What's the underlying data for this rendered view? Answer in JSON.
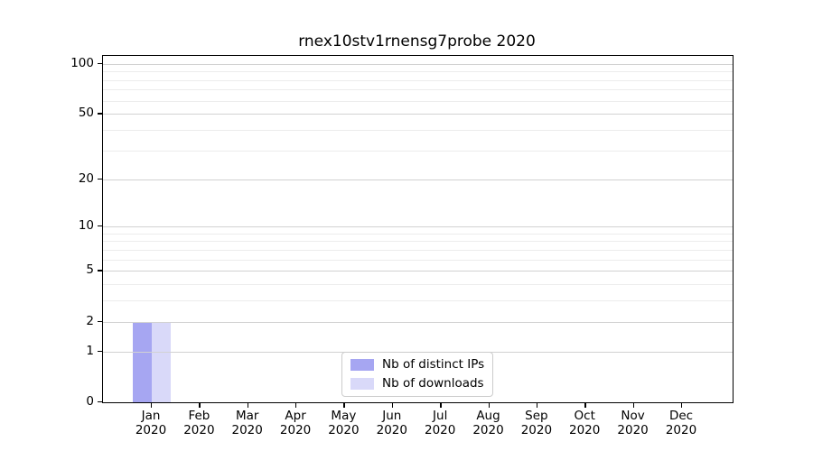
{
  "title": "rnex10stv1rnensg7probe 2020",
  "colors": {
    "distinct_ips_bar": "#a6a6f2",
    "downloads_bar": "#d9d9f9",
    "grid_major": "#d2d2d2",
    "grid_minor": "#ececec",
    "spine": "#000000",
    "legend_border": "#cccccc"
  },
  "chart_data": {
    "type": "bar",
    "title": "rnex10stv1rnensg7probe 2020",
    "categories": [
      "Jan 2020",
      "Feb 2020",
      "Mar 2020",
      "Apr 2020",
      "May 2020",
      "Jun 2020",
      "Jul 2020",
      "Aug 2020",
      "Sep 2020",
      "Oct 2020",
      "Nov 2020",
      "Dec 2020"
    ],
    "x_tick_line1": [
      "Jan",
      "Feb",
      "Mar",
      "Apr",
      "May",
      "Jun",
      "Jul",
      "Aug",
      "Sep",
      "Oct",
      "Nov",
      "Dec"
    ],
    "x_tick_line2": "2020",
    "series": [
      {
        "name": "Nb of distinct IPs",
        "color": "#a6a6f2",
        "values": [
          2,
          0,
          0,
          0,
          0,
          0,
          0,
          0,
          0,
          0,
          0,
          0
        ]
      },
      {
        "name": "Nb of downloads",
        "color": "#d9d9f9",
        "values": [
          2,
          0,
          0,
          0,
          0,
          0,
          0,
          0,
          0,
          0,
          0,
          0
        ]
      }
    ],
    "xlabel": "",
    "ylabel": "",
    "yscale": "log1p",
    "ylim": [
      0,
      111.5
    ],
    "yticks": [
      100,
      50,
      20,
      10,
      5,
      2,
      1,
      0
    ],
    "yticks_minor": [
      3,
      4,
      6,
      7,
      8,
      9,
      30,
      40,
      60,
      70,
      80,
      90
    ],
    "grid": "horizontal",
    "legend_position": "lower center"
  },
  "legend": {
    "items": [
      {
        "label": "Nb of distinct IPs",
        "color": "#a6a6f2"
      },
      {
        "label": "Nb of downloads",
        "color": "#d9d9f9"
      }
    ]
  }
}
